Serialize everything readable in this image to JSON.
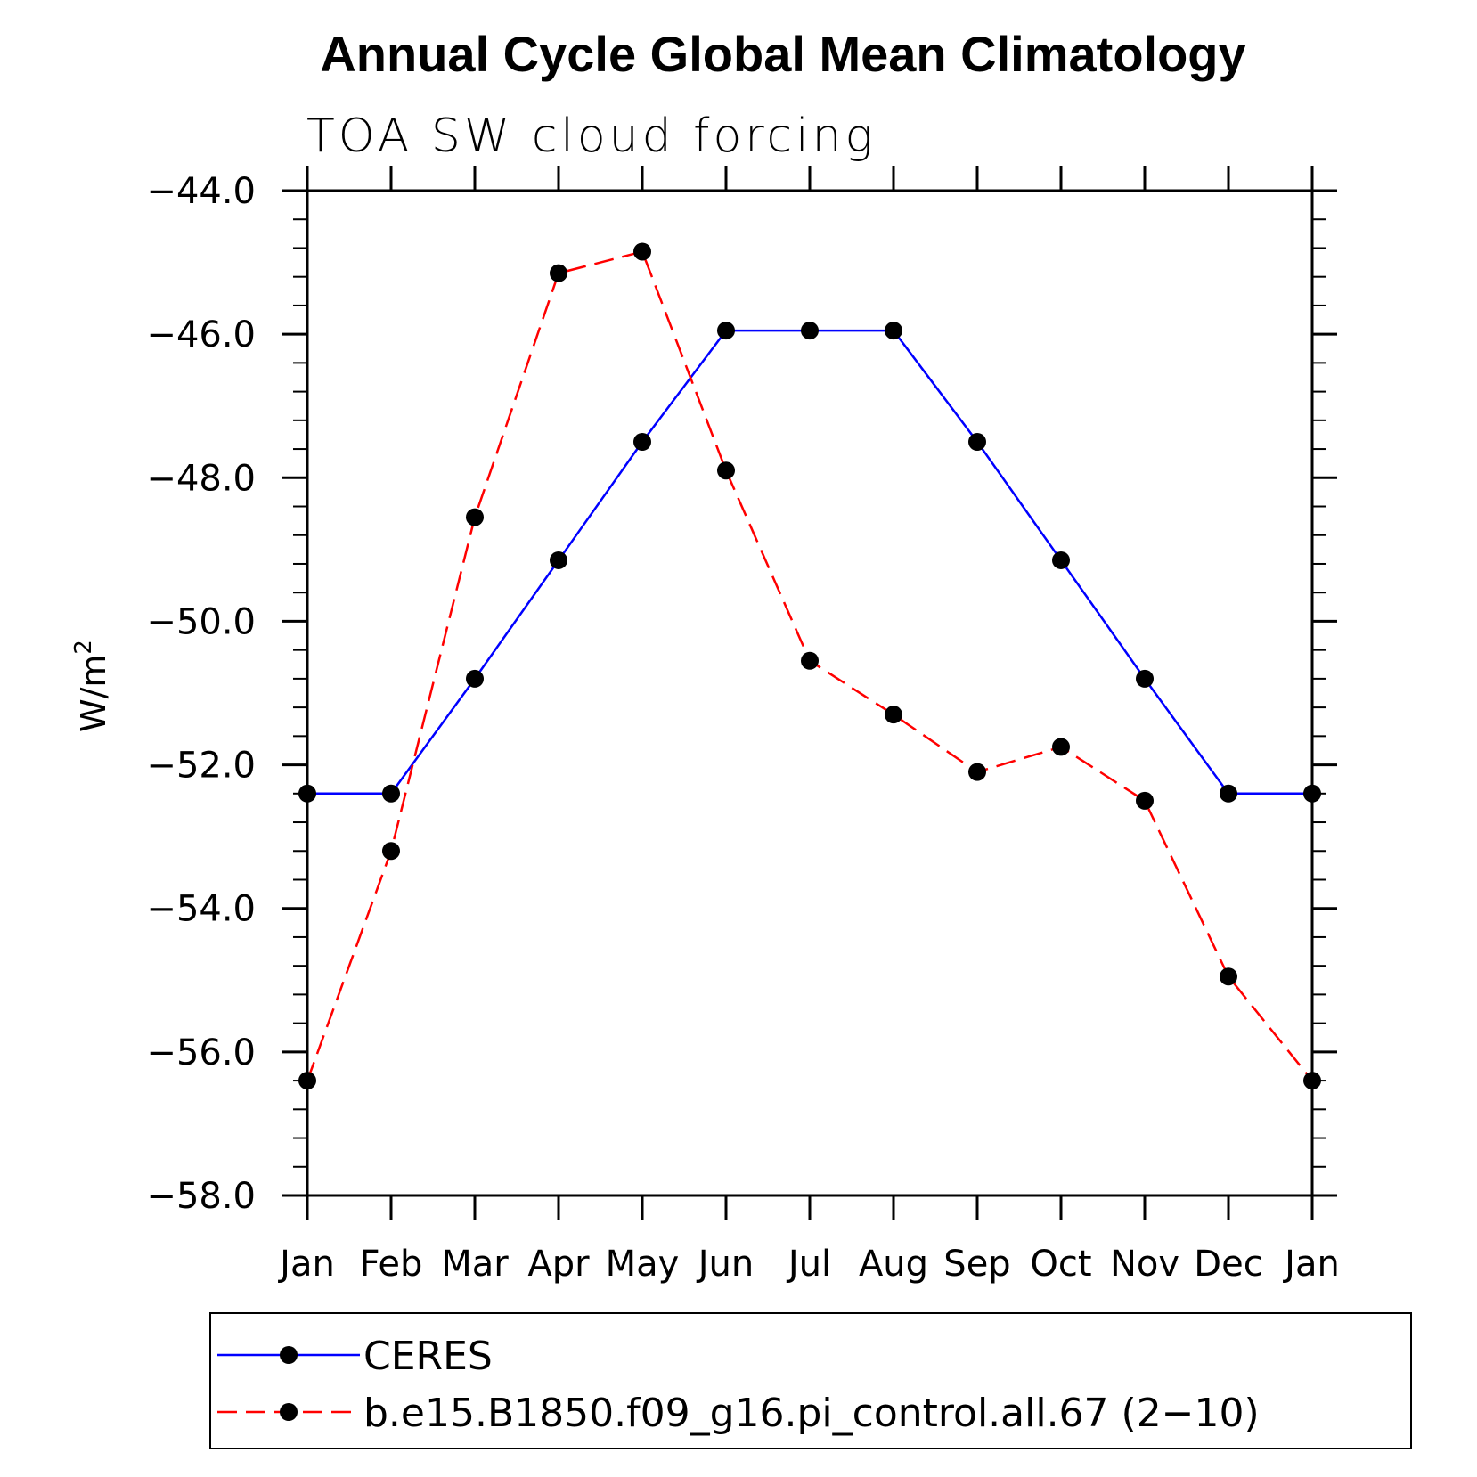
{
  "chart_data": {
    "type": "line",
    "title": "Annual Cycle Global Mean Climatology",
    "subtitle": "TOA SW cloud forcing",
    "ylabel": "W/m",
    "ylabel_superscript": "2",
    "ylim": [
      -58.0,
      -44.0
    ],
    "y_ticks": [
      "−44.0",
      "−46.0",
      "−48.0",
      "−50.0",
      "−52.0",
      "−54.0",
      "−56.0",
      "−58.0"
    ],
    "y_tick_values": [
      -44,
      -46,
      -48,
      -50,
      -52,
      -54,
      -56,
      -58
    ],
    "categories": [
      "Jan",
      "Feb",
      "Mar",
      "Apr",
      "May",
      "Jun",
      "Jul",
      "Aug",
      "Sep",
      "Oct",
      "Nov",
      "Dec",
      "Jan"
    ],
    "grid": false,
    "legend_position": "bottom",
    "series": [
      {
        "name": "CERES",
        "color": "#0000ff",
        "line_style": "solid",
        "marker": "filled-circle",
        "values": [
          -52.4,
          -52.4,
          -50.8,
          -49.15,
          -47.5,
          -45.95,
          -45.95,
          -45.95,
          -47.5,
          -49.15,
          -50.8,
          -52.4,
          -52.4
        ]
      },
      {
        "name": "b.e15.B1850.f09_g16.pi_control.all.67 (2−10)",
        "color": "#ff0000",
        "line_style": "dashed",
        "marker": "filled-circle",
        "values": [
          -56.4,
          -53.2,
          -48.55,
          -45.15,
          -44.85,
          -47.9,
          -50.55,
          -51.3,
          -52.1,
          -51.75,
          -52.5,
          -54.95,
          -56.4
        ]
      }
    ]
  }
}
